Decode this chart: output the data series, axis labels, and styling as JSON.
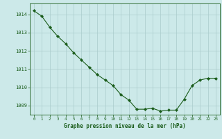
{
  "hours": [
    0,
    1,
    2,
    3,
    4,
    5,
    6,
    7,
    8,
    9,
    10,
    11,
    12,
    13,
    14,
    15,
    16,
    17,
    18,
    19,
    20,
    21,
    22,
    23
  ],
  "pressure": [
    1014.2,
    1013.9,
    1013.3,
    1012.8,
    1012.4,
    1011.9,
    1011.5,
    1011.1,
    1010.7,
    1010.4,
    1010.1,
    1009.6,
    1009.3,
    1008.8,
    1008.8,
    1008.85,
    1008.7,
    1008.75,
    1008.75,
    1009.35,
    1010.1,
    1010.4,
    1010.5,
    1010.5
  ],
  "line_color": "#1a5c1a",
  "marker_color": "#1a5c1a",
  "bg_color": "#cce9e9",
  "grid_color": "#aacccc",
  "xlabel": "Graphe pression niveau de la mer (hPa)",
  "xlabel_color": "#1a5c1a",
  "tick_color": "#1a5c1a",
  "ylim_min": 1008.5,
  "ylim_max": 1014.6,
  "yticks": [
    1009,
    1010,
    1011,
    1012,
    1013,
    1014
  ],
  "border_color": "#1a5c1a"
}
